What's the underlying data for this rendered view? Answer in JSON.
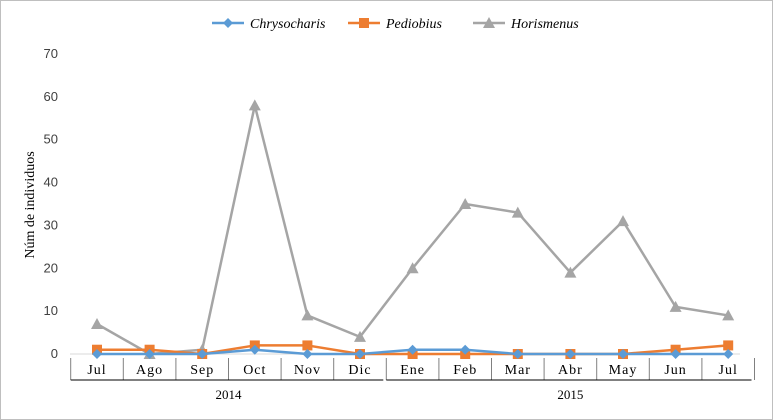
{
  "chart_data": {
    "type": "line",
    "title": "",
    "xlabel": "",
    "ylabel": "Núm de individuos",
    "ylim": [
      0,
      70
    ],
    "yticks": [
      "0",
      "10",
      "20",
      "30",
      "40",
      "50",
      "60",
      "70"
    ],
    "categories": [
      "Jul",
      "Ago",
      "Sep",
      "Oct",
      "Nov",
      "Dic",
      "Ene",
      "Feb",
      "Mar",
      "Abr",
      "May",
      "Jun",
      "Jul"
    ],
    "year_groups": [
      {
        "label": "2014",
        "from": 0,
        "to": 5
      },
      {
        "label": "2015",
        "from": 6,
        "to": 12
      }
    ],
    "grid": false,
    "legend_position": "top",
    "series": [
      {
        "name": "Chrysocharis",
        "color": "#5b9bd5",
        "marker": "diamond",
        "values": [
          0,
          0,
          0,
          1,
          0,
          0,
          1,
          1,
          0,
          0,
          0,
          0,
          0
        ]
      },
      {
        "name": "Pediobius",
        "color": "#ed7d31",
        "marker": "square",
        "values": [
          1,
          1,
          0,
          2,
          2,
          0,
          0,
          0,
          0,
          0,
          0,
          1,
          2
        ]
      },
      {
        "name": "Horismenus",
        "color": "#a5a5a5",
        "marker": "triangle",
        "values": [
          7,
          0,
          1,
          58,
          9,
          4,
          20,
          35,
          33,
          19,
          31,
          11,
          9
        ]
      }
    ]
  }
}
